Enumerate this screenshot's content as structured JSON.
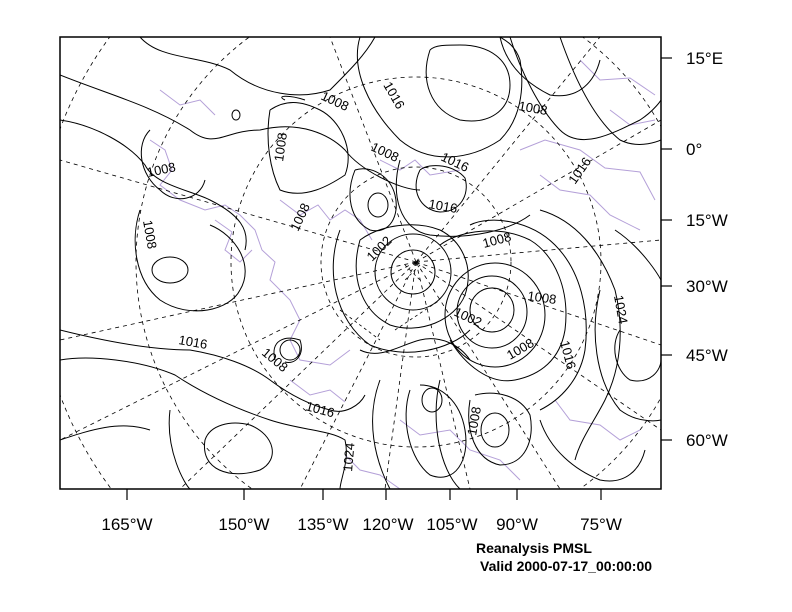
{
  "map": {
    "title": "Reanalysis PMSL",
    "valid_time": "Valid 2000-07-17_00:00:00",
    "lon_labels": [
      "165°W",
      "150°W",
      "135°W",
      "120°W",
      "105°W",
      "90°W",
      "75°W"
    ],
    "lat_labels": [
      "15°E",
      "0°",
      "15°W",
      "30°W",
      "45°W",
      "60°W"
    ],
    "contour_labels": [
      "1008",
      "1016",
      "1008",
      "1008",
      "1008",
      "1008",
      "1016",
      "1016",
      "1008",
      "1016",
      "1002",
      "1008",
      "1008",
      "1002",
      "1016",
      "1008",
      "1008",
      "1024",
      "1008",
      "1016",
      "1024",
      "1008",
      "1016"
    ],
    "colors": {
      "contour": "#000000",
      "coastline": "#b4a0d8",
      "graticule": "#000000"
    }
  }
}
